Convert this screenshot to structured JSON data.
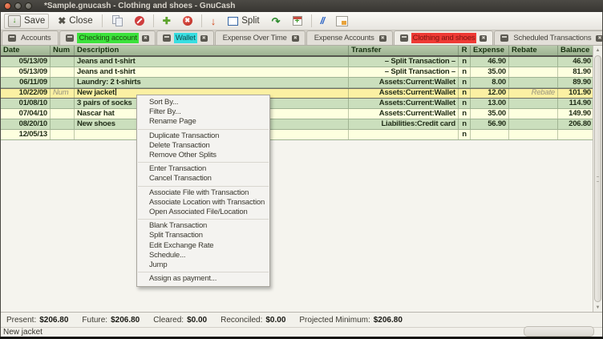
{
  "window": {
    "title": "*Sample.gnucash - Clothing and shoes - GnuCash"
  },
  "toolbar": {
    "save_label": "Save",
    "close_label": "Close",
    "split_label": "Split"
  },
  "icons": {
    "save": "↓",
    "close": "✖",
    "add": "✚",
    "delete": "✖",
    "blank": "↓",
    "jump": "↷",
    "schedule": "+",
    "transfer": "//",
    "tab_close": "✖",
    "scroll_up": "▲",
    "scroll_down": "▼"
  },
  "tabs": [
    {
      "label": "Accounts",
      "icon": true,
      "close": false,
      "highlight": null,
      "active": false
    },
    {
      "label": "Checking account",
      "icon": true,
      "close": true,
      "highlight": "green",
      "active": false
    },
    {
      "label": "Wallet",
      "icon": true,
      "close": true,
      "highlight": "cyan",
      "active": false
    },
    {
      "label": "Expense Over Time",
      "icon": false,
      "close": true,
      "highlight": null,
      "active": false
    },
    {
      "label": "Expense Accounts",
      "icon": false,
      "close": true,
      "highlight": null,
      "active": false
    },
    {
      "label": "Clothing and shoes",
      "icon": true,
      "close": true,
      "highlight": "red",
      "active": true
    },
    {
      "label": "Scheduled Transactions",
      "icon": true,
      "close": true,
      "highlight": null,
      "active": false
    }
  ],
  "register": {
    "columns": [
      "Date",
      "Num",
      "Description",
      "Transfer",
      "R",
      "Expense",
      "Rebate",
      "Balance"
    ],
    "rows": [
      {
        "tone": "green",
        "date": "05/13/09",
        "num": "",
        "description": "Jeans and t-shirt",
        "transfer": "– Split Transaction –",
        "r": "n",
        "expense": "46.90",
        "rebate": "",
        "balance": "46.90"
      },
      {
        "tone": "cream",
        "date": "05/13/09",
        "num": "",
        "description": "Jeans and t-shirt",
        "transfer": "– Split Transaction –",
        "r": "n",
        "expense": "35.00",
        "rebate": "",
        "balance": "81.90"
      },
      {
        "tone": "green",
        "date": "06/11/09",
        "num": "",
        "description": "Laundry: 2 t-shirts",
        "transfer": "Assets:Current:Wallet",
        "r": "n",
        "expense": "8.00",
        "rebate": "",
        "balance": "89.90"
      },
      {
        "tone": "selected",
        "date": "10/22/09",
        "num": "Num",
        "num_is_placeholder": true,
        "description": "New jacket",
        "editing": true,
        "transfer": "Assets:Current:Wallet",
        "r": "n",
        "expense": "12.00",
        "rebate": "Rebate",
        "rebate_is_placeholder": true,
        "balance": "101.90"
      },
      {
        "tone": "green",
        "date": "01/08/10",
        "num": "",
        "description": "3 pairs of socks",
        "transfer": "Assets:Current:Wallet",
        "r": "n",
        "expense": "13.00",
        "rebate": "",
        "balance": "114.90"
      },
      {
        "tone": "cream",
        "date": "07/04/10",
        "num": "",
        "description": "Nascar hat",
        "transfer": "Assets:Current:Wallet",
        "r": "n",
        "expense": "35.00",
        "rebate": "",
        "balance": "149.90"
      },
      {
        "tone": "green",
        "date": "08/20/10",
        "num": "",
        "description": "New shoes",
        "transfer": "Liabilities:Credit card",
        "r": "n",
        "expense": "56.90",
        "rebate": "",
        "balance": "206.80"
      },
      {
        "tone": "cream",
        "date": "12/05/13",
        "num": "",
        "description": "",
        "transfer": "",
        "r": "n",
        "expense": "",
        "rebate": "",
        "balance": ""
      }
    ]
  },
  "context_menu": {
    "items": [
      {
        "label": "Sort By..."
      },
      {
        "label": "Filter By..."
      },
      {
        "label": "Rename Page"
      },
      {
        "sep": true
      },
      {
        "label": "Duplicate Transaction"
      },
      {
        "label": "Delete Transaction"
      },
      {
        "label": "Remove Other Splits"
      },
      {
        "sep": true
      },
      {
        "label": "Enter Transaction"
      },
      {
        "label": "Cancel Transaction"
      },
      {
        "sep": true
      },
      {
        "label": "Associate File with Transaction"
      },
      {
        "label": "Associate Location with Transaction"
      },
      {
        "label": "Open Associated File/Location"
      },
      {
        "sep": true
      },
      {
        "label": "Blank Transaction"
      },
      {
        "label": "Split Transaction"
      },
      {
        "label": "Edit Exchange Rate"
      },
      {
        "label": "Schedule..."
      },
      {
        "label": "Jump"
      },
      {
        "sep": true
      },
      {
        "label": "Assign as payment..."
      }
    ]
  },
  "summary": {
    "items": [
      {
        "label": "Present:",
        "value": "$206.80"
      },
      {
        "label": "Future:",
        "value": "$206.80"
      },
      {
        "label": "Cleared:",
        "value": "$0.00"
      },
      {
        "label": "Reconciled:",
        "value": "$0.00"
      },
      {
        "label": "Projected Minimum:",
        "value": "$206.80"
      }
    ]
  },
  "statusbar": {
    "text": "New jacket"
  },
  "colors": {
    "row_green": "#cbdfbd",
    "row_cream": "#fdffdf",
    "row_selected": "#fbf0a3",
    "header_bg": "#a7bb9b",
    "tab_highlight_green": "#3ce23c",
    "tab_highlight_cyan": "#38dee1",
    "tab_highlight_red": "#ee3a35",
    "titlebar_bg": "#3c3a36"
  }
}
